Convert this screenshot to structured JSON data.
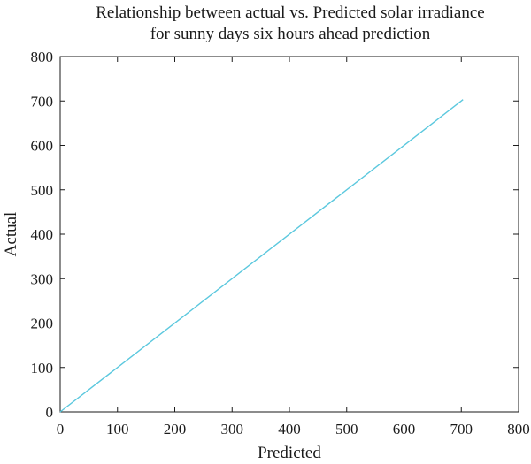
{
  "chart_data": {
    "type": "line",
    "title": [
      "Relationship between actual vs. Predicted solar irradiance",
      "for sunny days six hours ahead prediction"
    ],
    "xlabel": "Predicted",
    "ylabel": "Actual",
    "xlim": [
      0,
      800
    ],
    "ylim": [
      0,
      800
    ],
    "xticks": [
      0,
      100,
      200,
      300,
      400,
      500,
      600,
      700,
      800
    ],
    "yticks": [
      0,
      100,
      200,
      300,
      400,
      500,
      600,
      700,
      800
    ],
    "grid": false,
    "series": [
      {
        "x": [
          0,
          703
        ],
        "y": [
          0,
          703
        ],
        "color": "#5bc8de"
      }
    ]
  }
}
